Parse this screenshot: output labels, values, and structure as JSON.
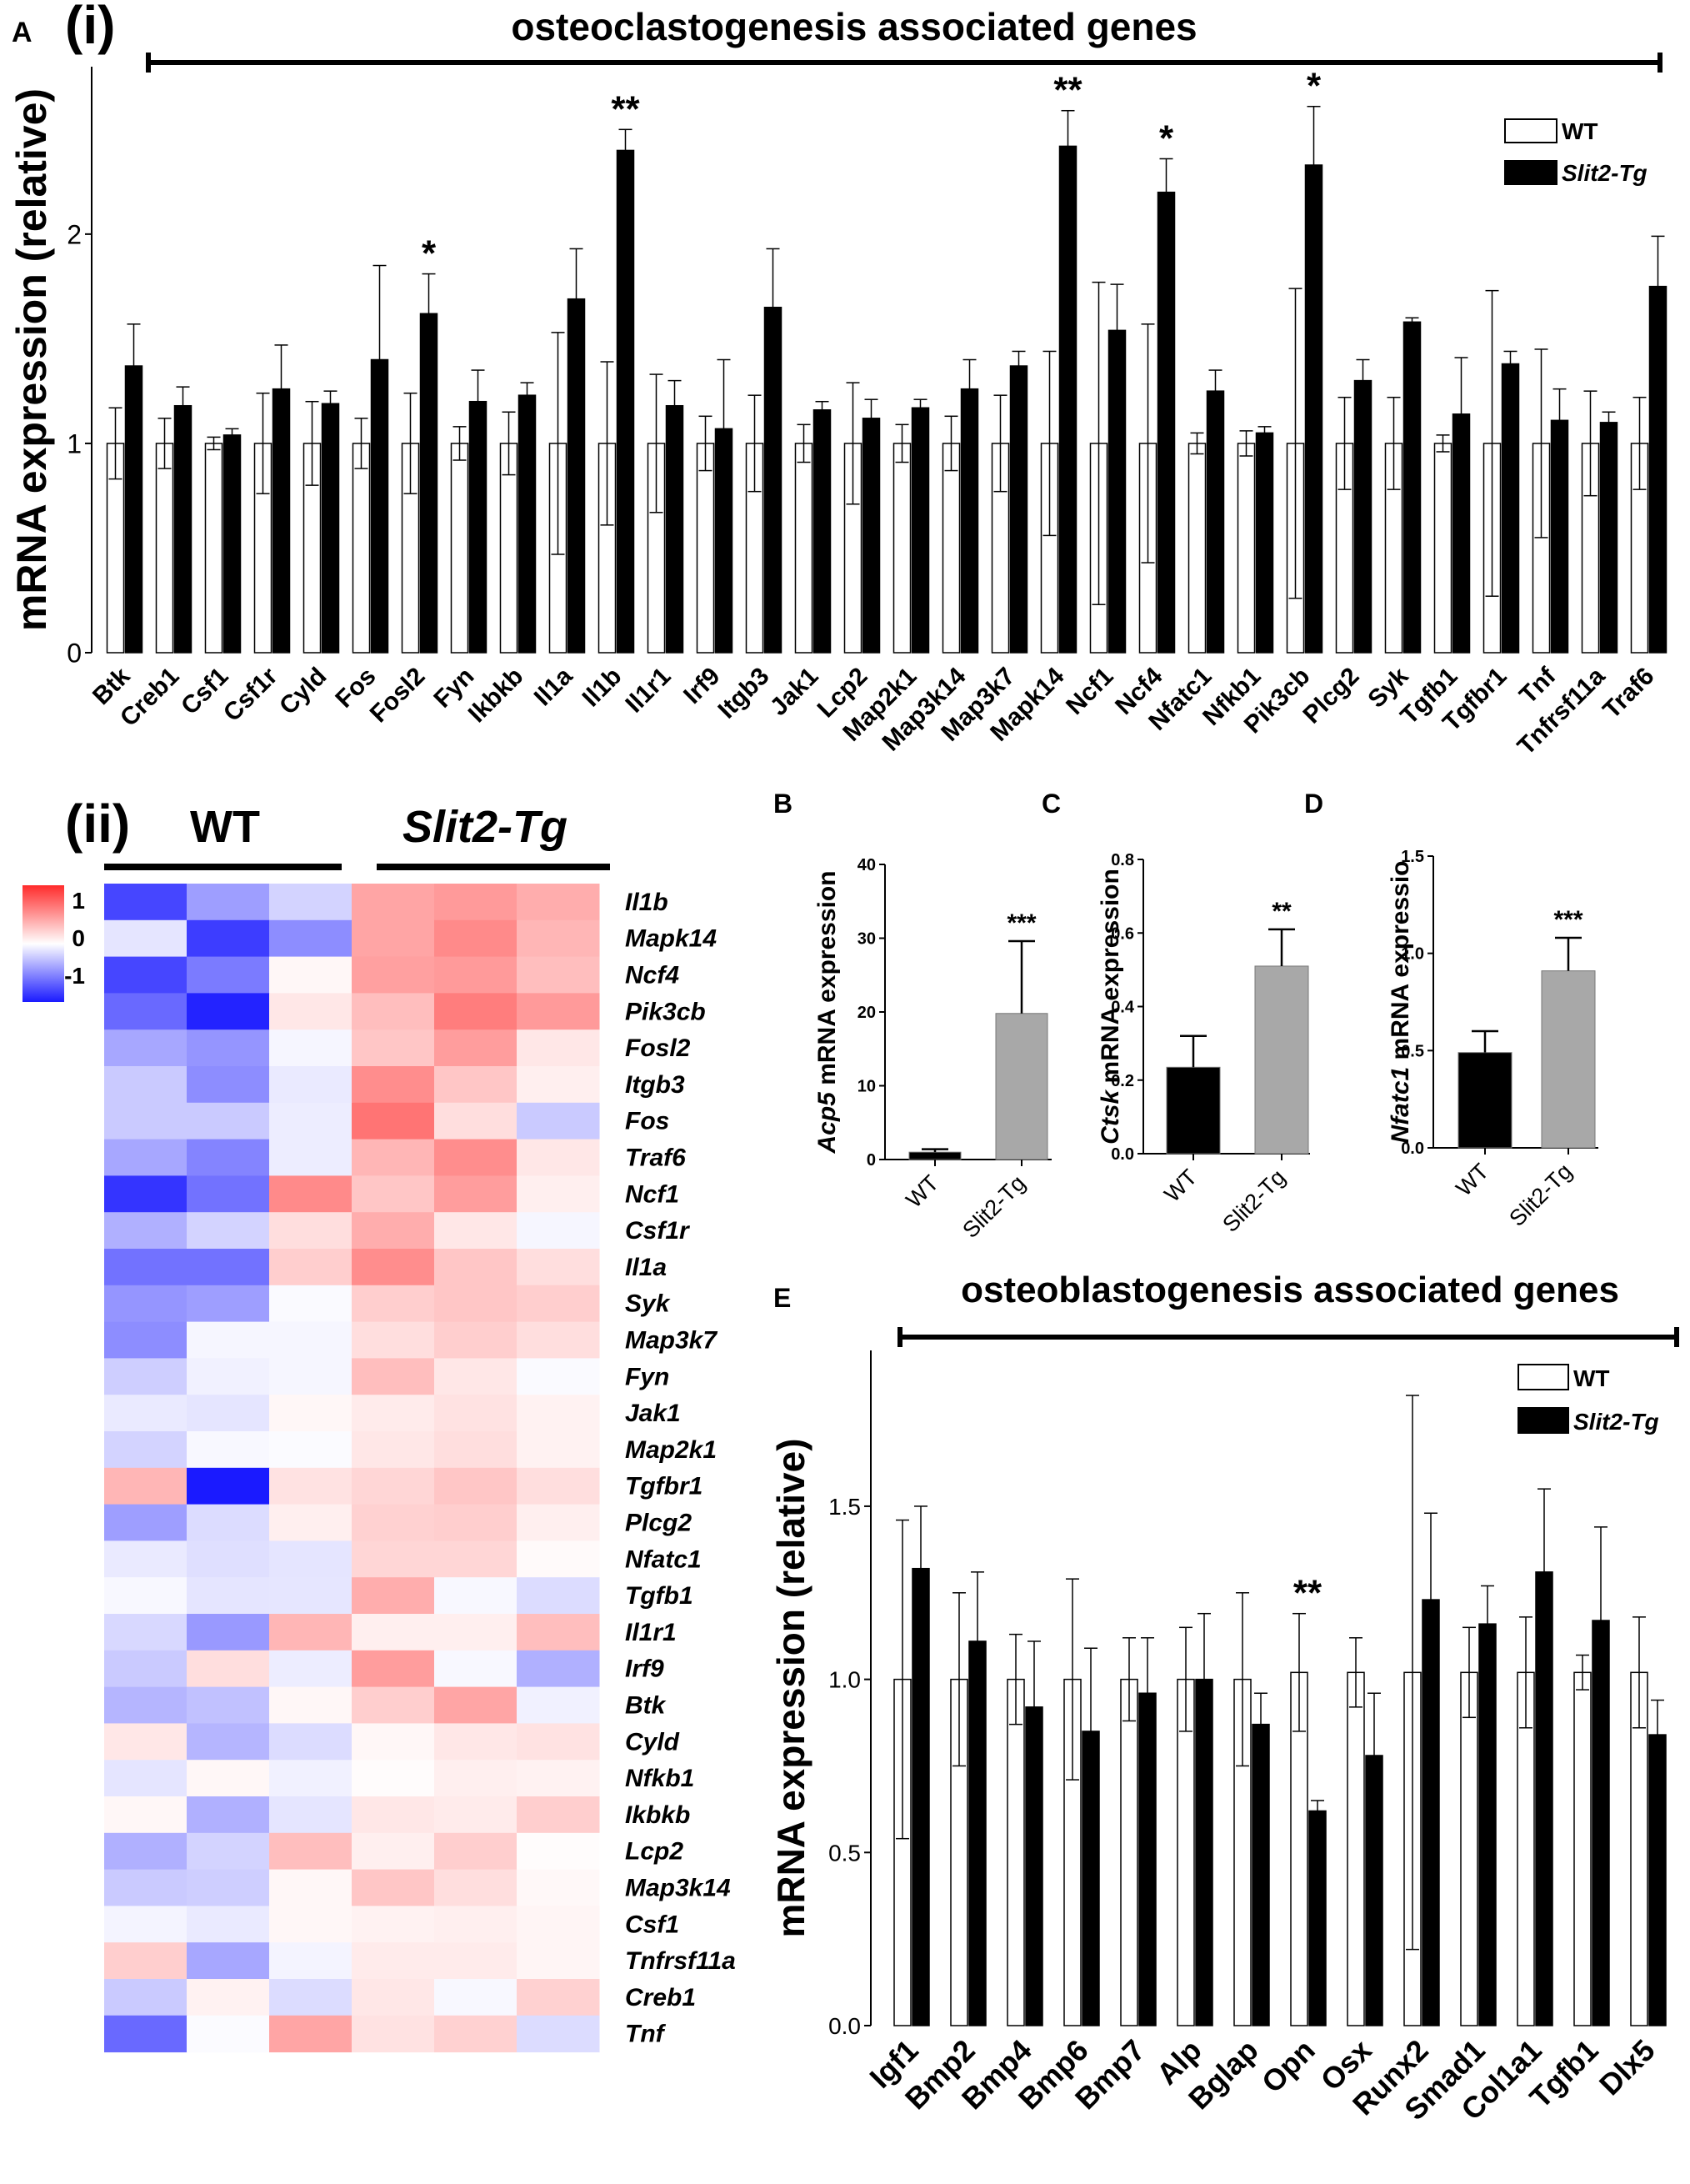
{
  "panel_labels": {
    "A": "A",
    "i": "(i)",
    "ii": "(ii)",
    "B": "B",
    "C": "C",
    "D": "D",
    "E": "E"
  },
  "colors": {
    "wt": "#ffffff",
    "tg": "#000000",
    "gray": "#a8a8a8",
    "neg": "#1a1aff",
    "pos": "#ff2b2b"
  },
  "chart_data": [
    {
      "id": "A_i",
      "type": "bar",
      "title": "osteoclastogenesis associated genes",
      "ylabel": "mRNA expression (relative)",
      "xlabel": "",
      "ylim": [
        0,
        2.8
      ],
      "yticks": [
        0,
        1,
        2
      ],
      "legend": [
        "WT",
        "Slit2-Tg"
      ],
      "legend_position": "top-right",
      "categories": [
        "Btk",
        "Creb1",
        "Csf1",
        "Csf1r",
        "Cyld",
        "Fos",
        "Fosl2",
        "Fyn",
        "Ikbkb",
        "Il1a",
        "Il1b",
        "Il1r1",
        "Irf9",
        "Itgb3",
        "Jak1",
        "Lcp2",
        "Map2k1",
        "Map3k14",
        "Map3k7",
        "Mapk14",
        "Ncf1",
        "Ncf4",
        "Nfatc1",
        "Nfkb1",
        "Pik3cb",
        "Plcg2",
        "Syk",
        "Tgfb1",
        "Tgfbr1",
        "Tnf",
        "Tnfrsf11a",
        "Traf6"
      ],
      "series": [
        {
          "name": "WT",
          "values": [
            1,
            1,
            1,
            1,
            1,
            1,
            1,
            1,
            1,
            1,
            1,
            1,
            1,
            1,
            1,
            1,
            1,
            1,
            1,
            1,
            1,
            1,
            1,
            1,
            1,
            1,
            1,
            1,
            1,
            1,
            1,
            1
          ],
          "errors": [
            0.17,
            0.12,
            0.03,
            0.24,
            0.2,
            0.12,
            0.24,
            0.08,
            0.15,
            0.53,
            0.39,
            0.33,
            0.13,
            0.23,
            0.09,
            0.29,
            0.09,
            0.13,
            0.23,
            0.44,
            0.77,
            0.57,
            0.05,
            0.06,
            0.74,
            0.22,
            0.22,
            0.04,
            0.73,
            0.45,
            0.25,
            0.22
          ]
        },
        {
          "name": "Slit2-Tg",
          "values": [
            1.37,
            1.18,
            1.04,
            1.26,
            1.19,
            1.4,
            1.62,
            1.2,
            1.23,
            1.69,
            2.4,
            1.18,
            1.07,
            1.65,
            1.16,
            1.12,
            1.17,
            1.26,
            1.37,
            2.42,
            1.54,
            2.2,
            1.25,
            1.05,
            2.33,
            1.3,
            1.58,
            1.14,
            1.38,
            1.11,
            1.1,
            1.75
          ],
          "errors": [
            0.2,
            0.09,
            0.03,
            0.21,
            0.06,
            0.45,
            0.19,
            0.15,
            0.06,
            0.24,
            0.1,
            0.12,
            0.33,
            0.28,
            0.04,
            0.09,
            0.04,
            0.14,
            0.07,
            0.17,
            0.22,
            0.16,
            0.1,
            0.03,
            0.28,
            0.1,
            0.02,
            0.27,
            0.06,
            0.15,
            0.05,
            0.24
          ]
        }
      ],
      "significance": [
        {
          "category": "Fosl2",
          "label": "*"
        },
        {
          "category": "Il1b",
          "label": "**"
        },
        {
          "category": "Mapk14",
          "label": "**"
        },
        {
          "category": "Ncf4",
          "label": "*"
        },
        {
          "category": "Pik3cb",
          "label": "*"
        }
      ]
    },
    {
      "id": "A_ii",
      "type": "heatmap",
      "group_labels": [
        "WT",
        "Slit2-Tg"
      ],
      "colorbar_ticks": [
        "1",
        "0",
        "-1"
      ],
      "colorbar_values": [
        1,
        0,
        -1
      ],
      "rows": [
        "Il1b",
        "Mapk14",
        "Ncf4",
        "Pik3cb",
        "Fosl2",
        "Itgb3",
        "Fos",
        "Traf6",
        "Ncf1",
        "Csf1r",
        "Il1a",
        "Syk",
        "Map3k7",
        "Fyn",
        "Jak1",
        "Map2k1",
        "Tgfbr1",
        "Plcg2",
        "Nfatc1",
        "Tgfb1",
        "Il1r1",
        "Irf9",
        "Btk",
        "Cyld",
        "Nfkb1",
        "Ikbkb",
        "Lcp2",
        "Map3k14",
        "Csf1",
        "Tnfrsf11a",
        "Creb1",
        "Tnf"
      ],
      "values": [
        [
          -1.05,
          -0.55,
          -0.25,
          0.55,
          0.62,
          0.5
        ],
        [
          -0.15,
          -1.1,
          -0.65,
          0.55,
          0.72,
          0.45
        ],
        [
          -1.05,
          -0.75,
          0.05,
          0.58,
          0.62,
          0.4
        ],
        [
          -0.85,
          -1.25,
          0.15,
          0.4,
          0.8,
          0.62
        ],
        [
          -0.5,
          -0.6,
          -0.05,
          0.35,
          0.6,
          0.15
        ],
        [
          -0.3,
          -0.65,
          -0.12,
          0.7,
          0.35,
          0.1
        ],
        [
          -0.3,
          -0.3,
          -0.1,
          0.85,
          0.2,
          -0.3
        ],
        [
          -0.5,
          -0.7,
          -0.1,
          0.45,
          0.7,
          0.15
        ],
        [
          -1.15,
          -0.8,
          0.72,
          0.35,
          0.6,
          0.1
        ],
        [
          -0.45,
          -0.25,
          0.2,
          0.5,
          0.15,
          -0.05
        ],
        [
          -0.8,
          -0.8,
          0.3,
          0.7,
          0.35,
          0.2
        ],
        [
          -0.6,
          -0.55,
          -0.03,
          0.3,
          0.35,
          0.3
        ],
        [
          -0.65,
          -0.05,
          -0.05,
          0.2,
          0.3,
          0.2
        ],
        [
          -0.28,
          -0.08,
          -0.05,
          0.4,
          0.15,
          -0.03
        ],
        [
          -0.12,
          -0.15,
          0.05,
          0.12,
          0.18,
          0.08
        ],
        [
          -0.25,
          -0.04,
          -0.02,
          0.15,
          0.2,
          0.08
        ],
        [
          0.45,
          -1.3,
          0.18,
          0.25,
          0.35,
          0.2
        ],
        [
          -0.55,
          -0.2,
          0.1,
          0.28,
          0.3,
          0.1
        ],
        [
          -0.12,
          -0.18,
          -0.15,
          0.25,
          0.25,
          0.03
        ],
        [
          -0.04,
          -0.15,
          -0.14,
          0.5,
          -0.04,
          -0.2
        ],
        [
          -0.22,
          -0.58,
          0.45,
          0.1,
          0.1,
          0.4
        ],
        [
          -0.3,
          0.2,
          -0.1,
          0.6,
          -0.04,
          -0.45
        ],
        [
          -0.42,
          -0.35,
          0.05,
          0.3,
          0.55,
          -0.08
        ],
        [
          0.15,
          -0.42,
          -0.2,
          0.05,
          0.15,
          0.18
        ],
        [
          -0.15,
          0.05,
          -0.08,
          0.02,
          0.1,
          0.08
        ],
        [
          0.05,
          -0.45,
          -0.15,
          0.15,
          0.12,
          0.3
        ],
        [
          -0.45,
          -0.25,
          0.4,
          0.1,
          0.3,
          0.02
        ],
        [
          -0.3,
          -0.28,
          0.05,
          0.35,
          0.2,
          0.04
        ],
        [
          -0.06,
          -0.12,
          0.05,
          0.08,
          0.1,
          0.06
        ],
        [
          0.3,
          -0.5,
          -0.06,
          0.12,
          0.12,
          0.06
        ],
        [
          -0.3,
          0.08,
          -0.2,
          0.15,
          -0.04,
          0.28
        ],
        [
          -0.85,
          -0.02,
          0.55,
          0.18,
          0.28,
          -0.2
        ]
      ]
    },
    {
      "id": "B",
      "type": "bar",
      "ylabel_italic": "Acp5",
      "ylabel_rest": " mRNA expression",
      "categories": [
        "WT",
        "Slit2-Tg"
      ],
      "values": [
        1.0,
        19.8
      ],
      "errors": [
        0.4,
        9.8
      ],
      "ylim": [
        0,
        40
      ],
      "yticks": [
        "0",
        "10",
        "20",
        "30",
        "40"
      ],
      "ytick_values": [
        0,
        10,
        20,
        30,
        40
      ],
      "significance": "***"
    },
    {
      "id": "C",
      "type": "bar",
      "ylabel_italic": "Ctsk",
      "ylabel_rest": " mRNA expression",
      "categories": [
        "WT",
        "Slit2-Tg"
      ],
      "values": [
        0.235,
        0.51
      ],
      "errors": [
        0.085,
        0.1
      ],
      "ylim": [
        0,
        0.8
      ],
      "yticks": [
        "0.0",
        "0.2",
        "0.4",
        "0.6",
        "0.8"
      ],
      "ytick_values": [
        0,
        0.2,
        0.4,
        0.6,
        0.8
      ],
      "significance": "**"
    },
    {
      "id": "D",
      "type": "bar",
      "ylabel_italic": "Nfatc1",
      "ylabel_rest": " mRNA expressio",
      "categories": [
        "WT",
        "Slit2-Tg"
      ],
      "values": [
        0.49,
        0.91
      ],
      "errors": [
        0.11,
        0.17
      ],
      "ylim": [
        0,
        1.5
      ],
      "yticks": [
        "0.0",
        "0.5",
        "1.0",
        "1.5"
      ],
      "ytick_values": [
        0,
        0.5,
        1.0,
        1.5
      ],
      "significance": "***"
    },
    {
      "id": "E",
      "type": "bar",
      "title": "osteoblastogenesis associated genes",
      "ylabel": "mRNA expression (relative)",
      "ylim": [
        0,
        1.95
      ],
      "yticks": [
        "0.0",
        "0.5",
        "1.0",
        "1.5"
      ],
      "ytick_values": [
        0,
        0.5,
        1.0,
        1.5
      ],
      "legend": [
        "WT",
        "Slit2-Tg"
      ],
      "legend_position": "top-right",
      "categories": [
        "Igf1",
        "Bmp2",
        "Bmp4",
        "Bmp6",
        "Bmp7",
        "Alp",
        "Bglap",
        "Opn",
        "Osx",
        "Runx2",
        "Smad1",
        "Col1a1",
        "Tgfb1",
        "Dlx5"
      ],
      "series": [
        {
          "name": "WT",
          "values": [
            1,
            1,
            1,
            1,
            1,
            1,
            1,
            1.02,
            1.02,
            1.02,
            1.02,
            1.02,
            1.02,
            1.02
          ],
          "errors": [
            0.46,
            0.25,
            0.13,
            0.29,
            0.12,
            0.15,
            0.25,
            0.17,
            0.1,
            0.8,
            0.13,
            0.16,
            0.05,
            0.16
          ]
        },
        {
          "name": "Slit2-Tg",
          "values": [
            1.32,
            1.11,
            0.92,
            0.85,
            0.96,
            1.0,
            0.87,
            0.62,
            0.78,
            1.23,
            1.16,
            1.31,
            1.17,
            0.84
          ],
          "errors": [
            0.18,
            0.2,
            0.19,
            0.24,
            0.16,
            0.19,
            0.09,
            0.03,
            0.18,
            0.25,
            0.11,
            0.24,
            0.27,
            0.1
          ]
        }
      ],
      "significance": [
        {
          "category": "Opn",
          "label": "**"
        }
      ]
    }
  ]
}
